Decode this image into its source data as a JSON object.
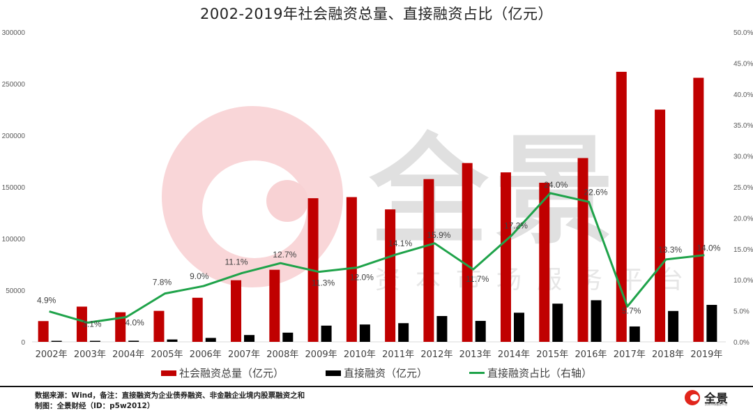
{
  "title": "2002-2019年社会融资总量、直接融资占比（亿元）",
  "watermark": {
    "brand": "全景",
    "subtitle": "资本市场服务平台"
  },
  "chart_data": {
    "type": "bar",
    "title": "2002-2019年社会融资总量、直接融资占比（亿元）",
    "categories": [
      "2002年",
      "2003年",
      "2004年",
      "2005年",
      "2006年",
      "2007年",
      "2008年",
      "2009年",
      "2010年",
      "2011年",
      "2012年",
      "2013年",
      "2014年",
      "2015年",
      "2016年",
      "2017年",
      "2018年",
      "2019年"
    ],
    "series": [
      {
        "name": "社会融资总量（亿元）",
        "type": "bar",
        "axis": "left",
        "color": "#c00000",
        "values": [
          20112,
          34113,
          28629,
          30008,
          42696,
          59663,
          69802,
          139104,
          140191,
          128286,
          157631,
          173169,
          164133,
          154086,
          178022,
          261536,
          224920,
          255753
        ]
      },
      {
        "name": "直接融资（亿元）",
        "type": "bar",
        "axis": "left",
        "color": "#000000",
        "values": [
          1000,
          1000,
          1100,
          2300,
          3800,
          6600,
          8900,
          15700,
          16800,
          18100,
          25000,
          20300,
          28200,
          37000,
          40300,
          14900,
          29900,
          35800
        ]
      },
      {
        "name": "直接融资占比（右轴）",
        "type": "line",
        "axis": "right",
        "color": "#1fa34a",
        "values": [
          4.9,
          3.1,
          4.0,
          7.8,
          9.0,
          11.1,
          12.7,
          11.3,
          12.0,
          14.1,
          15.9,
          11.7,
          17.2,
          24.0,
          22.6,
          5.7,
          13.3,
          14.0
        ],
        "labels": [
          "4.9%",
          "3.1%",
          "4.0%",
          "7.8%",
          "9.0%",
          "11.1%",
          "12.7%",
          "11.3%",
          "12.0%",
          "14.1%",
          "15.9%",
          "11.7%",
          "17.2%",
          "24.0%",
          "22.6%",
          "5.7%",
          "13.3%",
          "14.0%"
        ]
      }
    ],
    "y_left": {
      "ylim": [
        0,
        300000
      ],
      "ticks": [
        "0",
        "50000",
        "100000",
        "150000",
        "200000",
        "250000",
        "300000"
      ]
    },
    "y_right": {
      "ylim": [
        0,
        50
      ],
      "ticks": [
        "0.0%",
        "5.0%",
        "10.0%",
        "15.0%",
        "20.0%",
        "25.0%",
        "30.0%",
        "35.0%",
        "40.0%",
        "45.0%",
        "50.0%"
      ]
    },
    "xlabel": "",
    "ylabel": "",
    "grid": false,
    "legend_position": "bottom"
  },
  "legend": [
    {
      "label": "社会融资总量（亿元）",
      "color": "#c00000",
      "kind": "bar"
    },
    {
      "label": "直接融资（亿元）",
      "color": "#000000",
      "kind": "bar"
    },
    {
      "label": "直接融资占比（右轴）",
      "color": "#1fa34a",
      "kind": "line"
    }
  ],
  "footer": {
    "source": "数据来源：Wind，备注：直接融资为企业债券融资、非金融企业境内股票融资之和",
    "made_by": "制图：全景财经（ID：p5w2012）"
  },
  "logo": {
    "text": "全景",
    "subtitle": "资本市场服务平台"
  }
}
